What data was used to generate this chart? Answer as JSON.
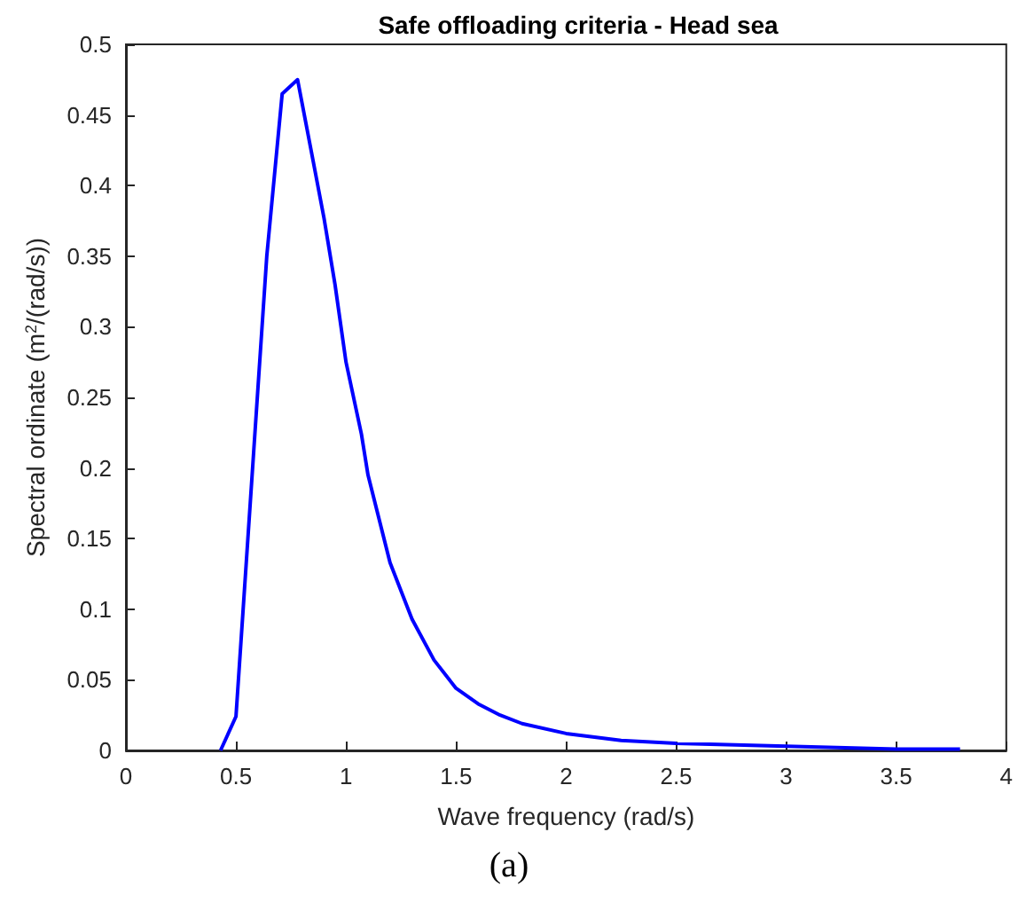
{
  "chart_data": {
    "type": "line",
    "title": "Safe offloading criteria - Head sea",
    "xlabel": "Wave frequency (rad/s)",
    "ylabel": "Spectral ordinate (m$^{2}$/(rad/s))",
    "annotations": [
      "(a)"
    ],
    "series": [
      {
        "color": "#0000ff",
        "x": [
          0.43,
          0.5,
          0.64,
          0.71,
          0.78,
          0.85,
          0.9,
          0.95,
          1.0,
          1.07,
          1.1,
          1.2,
          1.3,
          1.4,
          1.5,
          1.6,
          1.7,
          1.8,
          2.0,
          2.25,
          2.5,
          3.0,
          3.5,
          3.79
        ],
        "values": [
          0,
          0.024,
          0.35,
          0.465,
          0.475,
          0.418,
          0.377,
          0.33,
          0.275,
          0.224,
          0.195,
          0.133,
          0.093,
          0.064,
          0.044,
          0.033,
          0.025,
          0.019,
          0.012,
          0.007,
          0.005,
          0.003,
          0.001,
          0.001
        ]
      }
    ],
    "xlim": [
      0,
      4
    ],
    "xticks": [
      0,
      0.5,
      1,
      1.5,
      2,
      2.5,
      3,
      3.5,
      4
    ],
    "ylim": [
      0,
      0.5
    ],
    "yticks": [
      0,
      0.05,
      0.1,
      0.15,
      0.2,
      0.25,
      0.3,
      0.35,
      0.4,
      0.45,
      0.5
    ],
    "grid": false,
    "marker": "none",
    "line_style": "solid"
  }
}
